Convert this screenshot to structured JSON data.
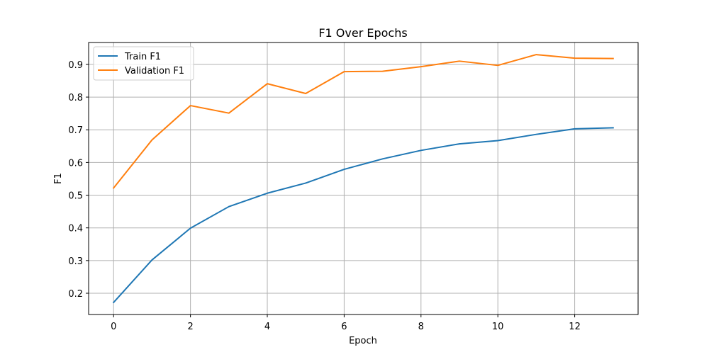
{
  "chart_data": {
    "type": "line",
    "title": "F1 Over Epochs",
    "xlabel": "Epoch",
    "ylabel": "F1",
    "x": [
      0,
      1,
      2,
      3,
      4,
      5,
      6,
      7,
      8,
      9,
      10,
      11,
      12,
      13
    ],
    "xlim": [
      -0.65,
      13.65
    ],
    "ylim": [
      0.135,
      0.967
    ],
    "xticks": [
      0,
      2,
      4,
      6,
      8,
      10,
      12
    ],
    "yticks": [
      0.2,
      0.3,
      0.4,
      0.5,
      0.6,
      0.7,
      0.8,
      0.9
    ],
    "grid": true,
    "legend_position": "top-left",
    "series": [
      {
        "name": "Train F1",
        "color": "#1f77b4",
        "values": [
          0.172,
          0.302,
          0.399,
          0.465,
          0.506,
          0.537,
          0.579,
          0.611,
          0.637,
          0.657,
          0.667,
          0.686,
          0.703,
          0.706
        ]
      },
      {
        "name": "Validation F1",
        "color": "#ff7f0e",
        "values": [
          0.522,
          0.669,
          0.774,
          0.751,
          0.841,
          0.811,
          0.878,
          0.879,
          0.893,
          0.91,
          0.897,
          0.93,
          0.919,
          0.918
        ]
      }
    ]
  }
}
